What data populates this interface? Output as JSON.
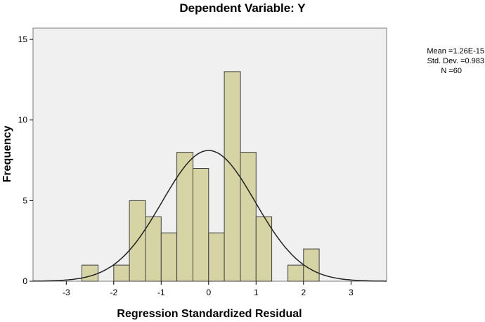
{
  "chart_data": {
    "type": "histogram",
    "title": "Dependent Variable: Y",
    "xlabel": "Regression Standardized Residual",
    "ylabel": "Frequency",
    "xlim": [
      -3.7,
      3.75
    ],
    "ylim": [
      0,
      15.7
    ],
    "x_ticks": [
      -3,
      -2,
      -1,
      0,
      1,
      2,
      3
    ],
    "x_tick_labels": [
      "-3",
      "-2",
      "-1",
      "0",
      "1",
      "2",
      "3"
    ],
    "y_ticks": [
      0,
      5,
      10,
      15
    ],
    "y_tick_labels": [
      "0",
      "5",
      "10",
      "15"
    ],
    "bin_width": 0.333,
    "bins": [
      {
        "x0": -2.67,
        "x1": -2.33,
        "count": 1
      },
      {
        "x0": -2.0,
        "x1": -1.67,
        "count": 1
      },
      {
        "x0": -1.67,
        "x1": -1.33,
        "count": 5
      },
      {
        "x0": -1.33,
        "x1": -1.0,
        "count": 4
      },
      {
        "x0": -1.0,
        "x1": -0.67,
        "count": 3
      },
      {
        "x0": -0.67,
        "x1": -0.33,
        "count": 8
      },
      {
        "x0": -0.33,
        "x1": 0.0,
        "count": 7
      },
      {
        "x0": 0.0,
        "x1": 0.33,
        "count": 3
      },
      {
        "x0": 0.33,
        "x1": 0.67,
        "count": 13
      },
      {
        "x0": 0.67,
        "x1": 1.0,
        "count": 8
      },
      {
        "x0": 1.0,
        "x1": 1.33,
        "count": 4
      },
      {
        "x0": 1.67,
        "x1": 2.0,
        "count": 1
      },
      {
        "x0": 2.0,
        "x1": 2.33,
        "count": 2
      }
    ],
    "normal_curve": {
      "mean": 0,
      "sd": 0.983,
      "n": 60
    },
    "stats_lines": [
      "Mean =1.26E-15",
      "Std. Dev. =0.983",
      "N =60"
    ],
    "grid": false,
    "legend": "none",
    "colors": {
      "bar_fill": "#d6d3a4",
      "bar_stroke": "#404040",
      "plot_bg": "#f0f0f0",
      "curve": "#222222"
    }
  }
}
